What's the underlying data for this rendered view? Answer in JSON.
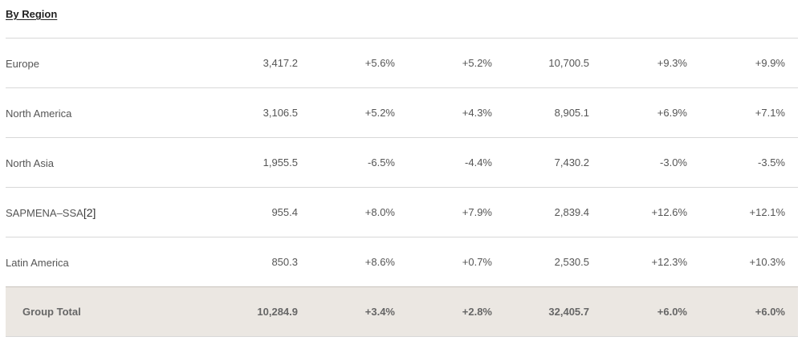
{
  "section": {
    "title": "By Region"
  },
  "rows": [
    {
      "name": "Europe",
      "footnote": "",
      "values": [
        "3,417.2",
        "+5.6%",
        "+5.2%",
        "10,700.5",
        "+9.3%",
        "+9.9%"
      ]
    },
    {
      "name": "North America",
      "footnote": "",
      "values": [
        "3,106.5",
        "+5.2%",
        "+4.3%",
        "8,905.1",
        "+6.9%",
        "+7.1%"
      ]
    },
    {
      "name": "North Asia",
      "footnote": "",
      "values": [
        "1,955.5",
        "-6.5%",
        "-4.4%",
        "7,430.2",
        "-3.0%",
        "-3.5%"
      ]
    },
    {
      "name": "SAPMENA–SSA",
      "footnote": "[2]",
      "values": [
        "955.4",
        "+8.0%",
        "+7.9%",
        "2,839.4",
        "+12.6%",
        "+12.1%"
      ]
    },
    {
      "name": "Latin America",
      "footnote": "",
      "values": [
        "850.3",
        "+8.6%",
        "+0.7%",
        "2,530.5",
        "+12.3%",
        "+10.3%"
      ]
    }
  ],
  "total": {
    "name": "Group Total",
    "values": [
      "10,284.9",
      "+3.4%",
      "+2.8%",
      "32,405.7",
      "+6.0%",
      "+6.0%"
    ]
  }
}
